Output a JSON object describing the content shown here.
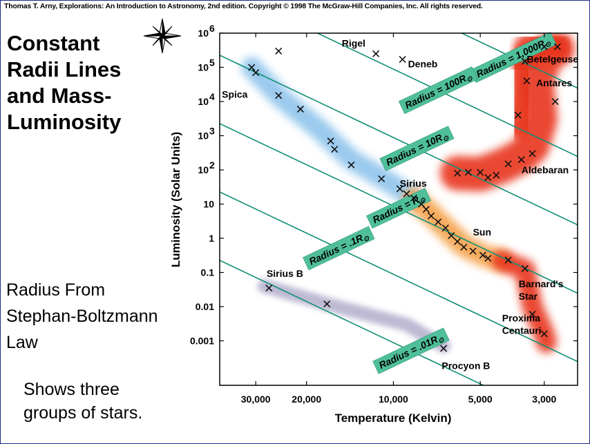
{
  "header": {
    "copyright": "Thomas T. Arny, Explorations: An Introduction to Astronomy, 2nd edition. Copyright © 1998 The McGraw-Hill Companies, Inc. All rights reserved."
  },
  "slide": {
    "title_lines": [
      "Constant",
      "Radii Lines",
      "and Mass-",
      "Luminosity"
    ],
    "note_lines": [
      "Radius From",
      "Stephan-Boltzmann",
      "Law"
    ],
    "shows_lines": [
      "Shows three",
      "groups of stars."
    ],
    "icon": "compass-star-icon"
  },
  "chart_data": {
    "type": "scatter",
    "xlabel": "Temperature (Kelvin)",
    "ylabel": "Luminosity (Solar Units)",
    "x_scale": "log-reversed",
    "y_scale": "log",
    "xlim": [
      40000,
      2300
    ],
    "ylim": [
      5e-05,
      1000000
    ],
    "x_ticks": [
      {
        "value": 30000,
        "label": "30,000"
      },
      {
        "value": 20000,
        "label": "20,000"
      },
      {
        "value": 10000,
        "label": "10,000"
      },
      {
        "value": 5000,
        "label": "5,000"
      },
      {
        "value": 3000,
        "label": "3,000"
      }
    ],
    "y_ticks": [
      {
        "value": 1000000,
        "label": "10",
        "sup": "6"
      },
      {
        "value": 100000,
        "label": "10",
        "sup": "5"
      },
      {
        "value": 10000,
        "label": "10",
        "sup": "4"
      },
      {
        "value": 1000,
        "label": "10",
        "sup": "3"
      },
      {
        "value": 100,
        "label": "10",
        "sup": "2"
      },
      {
        "value": 10,
        "label": "10",
        "sup": ""
      },
      {
        "value": 1,
        "label": "1",
        "sup": ""
      },
      {
        "value": 0.1,
        "label": "0.1",
        "sup": ""
      },
      {
        "value": 0.01,
        "label": "0.01",
        "sup": ""
      },
      {
        "value": 0.001,
        "label": "0.001",
        "sup": ""
      }
    ],
    "radius_lines": [
      {
        "radius": 1000,
        "label": "Radius = 1,000R",
        "sub": "⊙"
      },
      {
        "radius": 100,
        "label": "Radius = 100R",
        "sub": "⊙"
      },
      {
        "radius": 10,
        "label": "Radius = 10R",
        "sub": "⊙"
      },
      {
        "radius": 1,
        "label": "Radius = R",
        "sub": "⊙"
      },
      {
        "radius": 0.1,
        "label": "Radius = .1R",
        "sub": "⊙"
      },
      {
        "radius": 0.01,
        "label": "Radius = .01R",
        "sub": "⊙"
      }
    ],
    "regions": [
      {
        "name": "main-sequence-hot",
        "color": "#8fc4ec"
      },
      {
        "name": "main-sequence-cool",
        "color": "#f6a24c"
      },
      {
        "name": "giants",
        "color": "#e8351a"
      },
      {
        "name": "white-dwarfs",
        "color": "#b6b2cf"
      }
    ],
    "points": [
      {
        "T": 25000,
        "L": 300000
      },
      {
        "T": 31000,
        "L": 100000
      },
      {
        "T": 30000,
        "L": 70000
      },
      {
        "T": 25000,
        "L": 15000
      },
      {
        "T": 21000,
        "L": 6000
      },
      {
        "T": 16500,
        "L": 700
      },
      {
        "T": 16000,
        "L": 400
      },
      {
        "T": 14000,
        "L": 140
      },
      {
        "T": 11000,
        "L": 55
      },
      {
        "T": 9500,
        "L": 28
      },
      {
        "T": 9000,
        "L": 20
      },
      {
        "T": 8500,
        "L": 15
      },
      {
        "T": 8000,
        "L": 10
      },
      {
        "T": 7700,
        "L": 7
      },
      {
        "T": 7400,
        "L": 4.5
      },
      {
        "T": 7000,
        "L": 3
      },
      {
        "T": 6600,
        "L": 2
      },
      {
        "T": 6300,
        "L": 1.2
      },
      {
        "T": 6000,
        "L": 0.8
      },
      {
        "T": 5700,
        "L": 0.55
      },
      {
        "T": 5300,
        "L": 0.42
      },
      {
        "T": 4900,
        "L": 0.32
      },
      {
        "T": 4700,
        "L": 0.26
      },
      {
        "T": 4000,
        "L": 0.23
      },
      {
        "T": 3500,
        "L": 0.13
      },
      {
        "T": 3300,
        "L": 0.006
      },
      {
        "T": 3000,
        "L": 0.0016
      },
      {
        "T": 11500,
        "L": 250000
      },
      {
        "T": 9300,
        "L": 170000
      },
      {
        "T": 3500,
        "L": 150000
      },
      {
        "T": 3450,
        "L": 40000
      },
      {
        "T": 3000,
        "L": 400000
      },
      {
        "T": 2700,
        "L": 400000
      },
      {
        "T": 2750,
        "L": 10000
      },
      {
        "T": 3700,
        "L": 4000
      },
      {
        "T": 3300,
        "L": 300
      },
      {
        "T": 3600,
        "L": 200
      },
      {
        "T": 4000,
        "L": 150
      },
      {
        "T": 4400,
        "L": 70
      },
      {
        "T": 4700,
        "L": 60
      },
      {
        "T": 5000,
        "L": 85
      },
      {
        "T": 5500,
        "L": 85
      },
      {
        "T": 6000,
        "L": 80
      },
      {
        "T": 27000,
        "L": 0.035
      },
      {
        "T": 17000,
        "L": 0.012
      },
      {
        "T": 6700,
        "L": 0.0006
      }
    ],
    "star_labels": [
      {
        "lines": [
          "Rigel"
        ],
        "T": 12500,
        "L": 400000,
        "anchor": "end"
      },
      {
        "lines": [
          "Deneb"
        ],
        "T": 8900,
        "L": 100000,
        "anchor": "start"
      },
      {
        "lines": [
          "Spica"
        ],
        "T": 32000,
        "L": 13000,
        "anchor": "end"
      },
      {
        "lines": [
          "Betelgeuse"
        ],
        "T": 3450,
        "L": 140000,
        "anchor": "start"
      },
      {
        "lines": [
          "Antares"
        ],
        "T": 3200,
        "L": 28000,
        "anchor": "start"
      },
      {
        "lines": [
          "Aldebaran"
        ],
        "T": 3600,
        "L": 80,
        "anchor": "start"
      },
      {
        "lines": [
          "Sirius"
        ],
        "T": 9500,
        "L": 32,
        "anchor": "start"
      },
      {
        "lines": [
          "Sun"
        ],
        "T": 5300,
        "L": 1.2,
        "anchor": "start"
      },
      {
        "lines": [
          "Barnard's",
          "Star"
        ],
        "T": 3680,
        "L": 0.037,
        "anchor": "start"
      },
      {
        "lines": [
          "Proxima",
          "Centauri"
        ],
        "T": 4200,
        "L": 0.0037,
        "anchor": "start"
      },
      {
        "lines": [
          "Sirius B"
        ],
        "T": 27500,
        "L": 0.075,
        "anchor": "start"
      },
      {
        "lines": [
          "Procyon B"
        ],
        "T": 6800,
        "L": 0.00015,
        "anchor": "start"
      }
    ]
  }
}
